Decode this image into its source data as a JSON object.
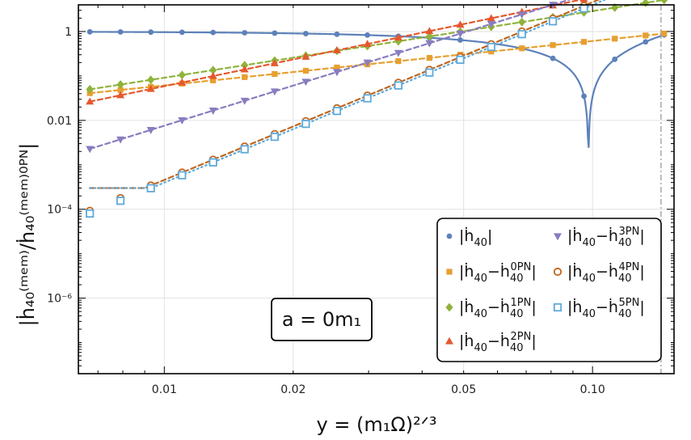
{
  "chart_data": {
    "type": "line",
    "xscale": "log",
    "yscale": "log",
    "xlim": [
      0.0063,
      0.155
    ],
    "ylim_log10": [
      -7.7,
      0.6
    ],
    "xlabel": "y = (m₁Ω)²ᐟ³",
    "ylabel": "|ḣ₄₀⁽ᵐᵉᵐ⁾/ḣ₄₀⁽ᵐᵉᵐ⁾⁰ᴾᴺ|",
    "x_ticks": [
      {
        "value": 0.01,
        "label": "0.01"
      },
      {
        "value": 0.02,
        "label": "0.02"
      },
      {
        "value": 0.05,
        "label": "0.05"
      },
      {
        "value": 0.1,
        "label": "0.10"
      }
    ],
    "y_ticks": [
      {
        "value": 1,
        "label": "1"
      },
      {
        "value": 0.01,
        "label": "0.01"
      },
      {
        "value": 0.0001,
        "label": "10⁻⁴"
      },
      {
        "value": 1e-06,
        "label": "10⁻⁶"
      }
    ],
    "vertical_line_x": 0.1445,
    "annotation": "a = 0m₁",
    "marker_x": [
      0.0067,
      0.0079,
      0.0093,
      0.011,
      0.013,
      0.0154,
      0.0181,
      0.0214,
      0.0253,
      0.0298,
      0.0352,
      0.0416,
      0.0491,
      0.058,
      0.0684,
      0.0808,
      0.0955,
      0.1127,
      0.133,
      0.147
    ],
    "series": [
      {
        "name": "|ḣ₄₀|",
        "legend_base": "|ḣ",
        "legend_sub": "40",
        "legend_sup": "",
        "legend_tail": "|",
        "color": "#5d81b9",
        "marker": "circle",
        "line": "solid",
        "intercept": 0,
        "slope": 0
      },
      {
        "name": "|ḣ₄₀−ḣ₄₀⁰ᴾᴺ|",
        "legend_base": "|ḣ",
        "legend_sub": "40",
        "legend_sup": "0PN",
        "legend_tail": "|",
        "color": "#e6a030",
        "marker": "square",
        "line": "dashed",
        "intercept": 0.787,
        "slope": 1.0
      },
      {
        "name": "|ḣ₄₀−ḣ₄₀¹ᴾᴺ|",
        "legend_base": "|ḣ",
        "legend_sub": "40",
        "legend_sup": "1PN",
        "legend_tail": "|",
        "color": "#8fb33a",
        "marker": "diamond",
        "line": "dashed",
        "intercept": 1.96,
        "slope": 1.5
      },
      {
        "name": "|ḣ₄₀−ḣ₄₀²ᴾᴺ|",
        "legend_base": "|ḣ",
        "legend_sub": "40",
        "legend_sup": "2PN",
        "legend_tail": "|",
        "color": "#e5582e",
        "marker": "triangle-up",
        "line": "dashed",
        "intercept": 2.77,
        "slope": 2.0
      },
      {
        "name": "|ḣ₄₀−ḣ₄₀³ᴾᴺ|",
        "legend_base": "|ḣ",
        "legend_sub": "40",
        "legend_sup": "3PN",
        "legend_tail": "|",
        "color": "#8a7cc0",
        "marker": "triangle-down",
        "line": "dashed",
        "intercept": 3.88,
        "slope": 3.0
      },
      {
        "name": "|ḣ₄₀−ḣ₄₀⁴ᴾᴺ|",
        "legend_base": "|ḣ",
        "legend_sub": "40",
        "legend_sup": "4PN",
        "legend_tail": "|",
        "color": "#c0661e",
        "marker": "open-circle",
        "line": "dashed",
        "intercept": 4.66,
        "slope": 4.0
      },
      {
        "name": "|ḣ₄₀−ḣ₄₀⁵ᴾᴺ|",
        "legend_base": "|ḣ",
        "legend_sub": "40",
        "legend_sup": "5PN",
        "legend_tail": "|",
        "color": "#5ea9da",
        "marker": "open-square",
        "line": "dotted",
        "intercept": 4.6,
        "slope": 4.0
      }
    ]
  }
}
